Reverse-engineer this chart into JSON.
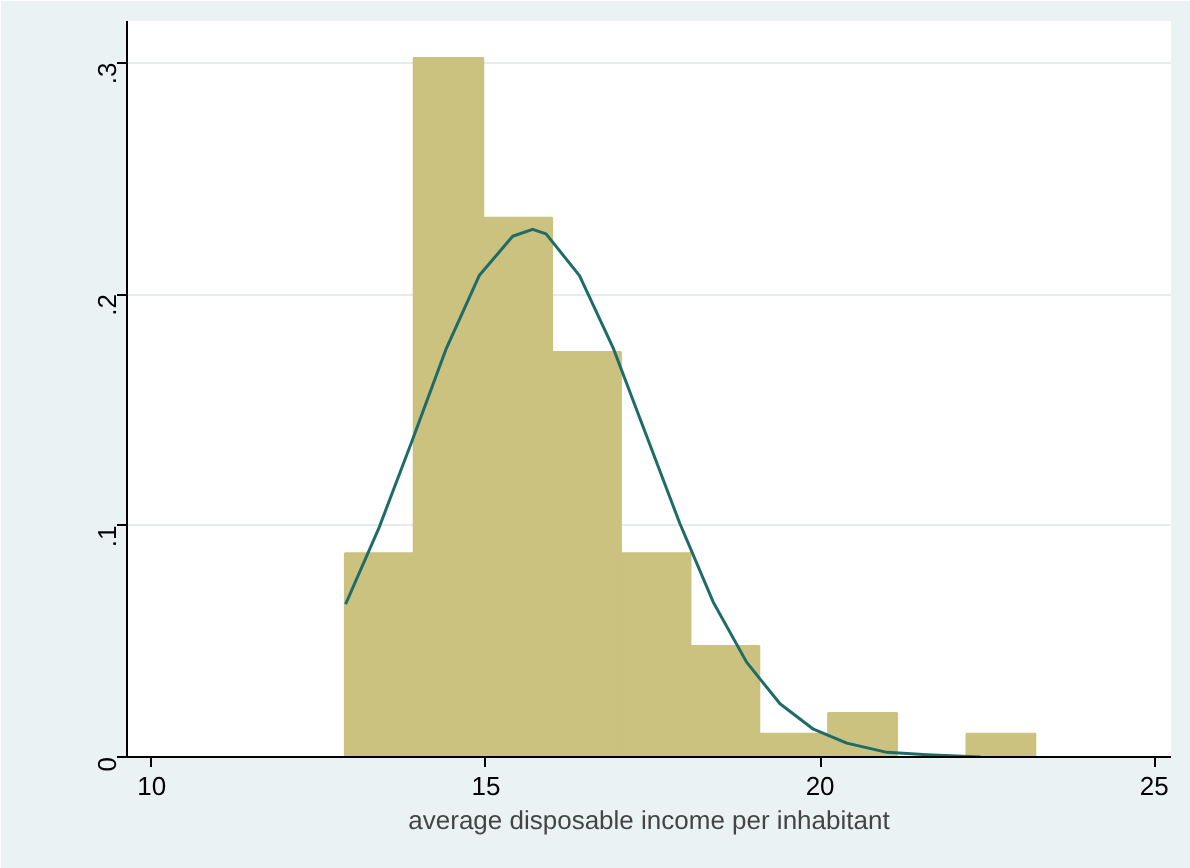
{
  "chart_data": {
    "type": "histogram",
    "xlabel": "average disposable income per inhabitant",
    "bins": [
      12.89,
      13.92,
      14.96,
      15.99,
      17.02,
      18.06,
      19.09,
      20.12,
      21.15,
      22.19,
      23.22
    ],
    "values": [
      0.088,
      0.302,
      0.233,
      0.175,
      0.088,
      0.048,
      0.01,
      0.019,
      0,
      0.01
    ],
    "color": "#cac27e",
    "series": [
      {
        "type": "line",
        "color": "#1f6b68",
        "x": [
          12.9,
          13.4,
          13.9,
          14.4,
          14.9,
          15.4,
          15.7,
          15.9,
          16.4,
          16.9,
          17.4,
          17.9,
          18.4,
          18.9,
          19.4,
          19.9,
          20.4,
          21.0,
          21.6,
          22.4
        ],
        "values": [
          0.066,
          0.099,
          0.137,
          0.176,
          0.208,
          0.225,
          0.228,
          0.226,
          0.208,
          0.177,
          0.139,
          0.101,
          0.067,
          0.041,
          0.023,
          0.012,
          0.006,
          0.002,
          0.001,
          0
        ]
      }
    ],
    "xlim": [
      9.63,
      25.25
    ],
    "ylim": [
      0,
      0.318
    ],
    "xticks": [
      10,
      15,
      20,
      25
    ],
    "yticks": [
      {
        "value": 0,
        "label": "0"
      },
      {
        "value": 0.1,
        "label": ".1"
      },
      {
        "value": 0.2,
        "label": ".2"
      },
      {
        "value": 0.3,
        "label": ".3"
      }
    ],
    "grid": "y"
  }
}
